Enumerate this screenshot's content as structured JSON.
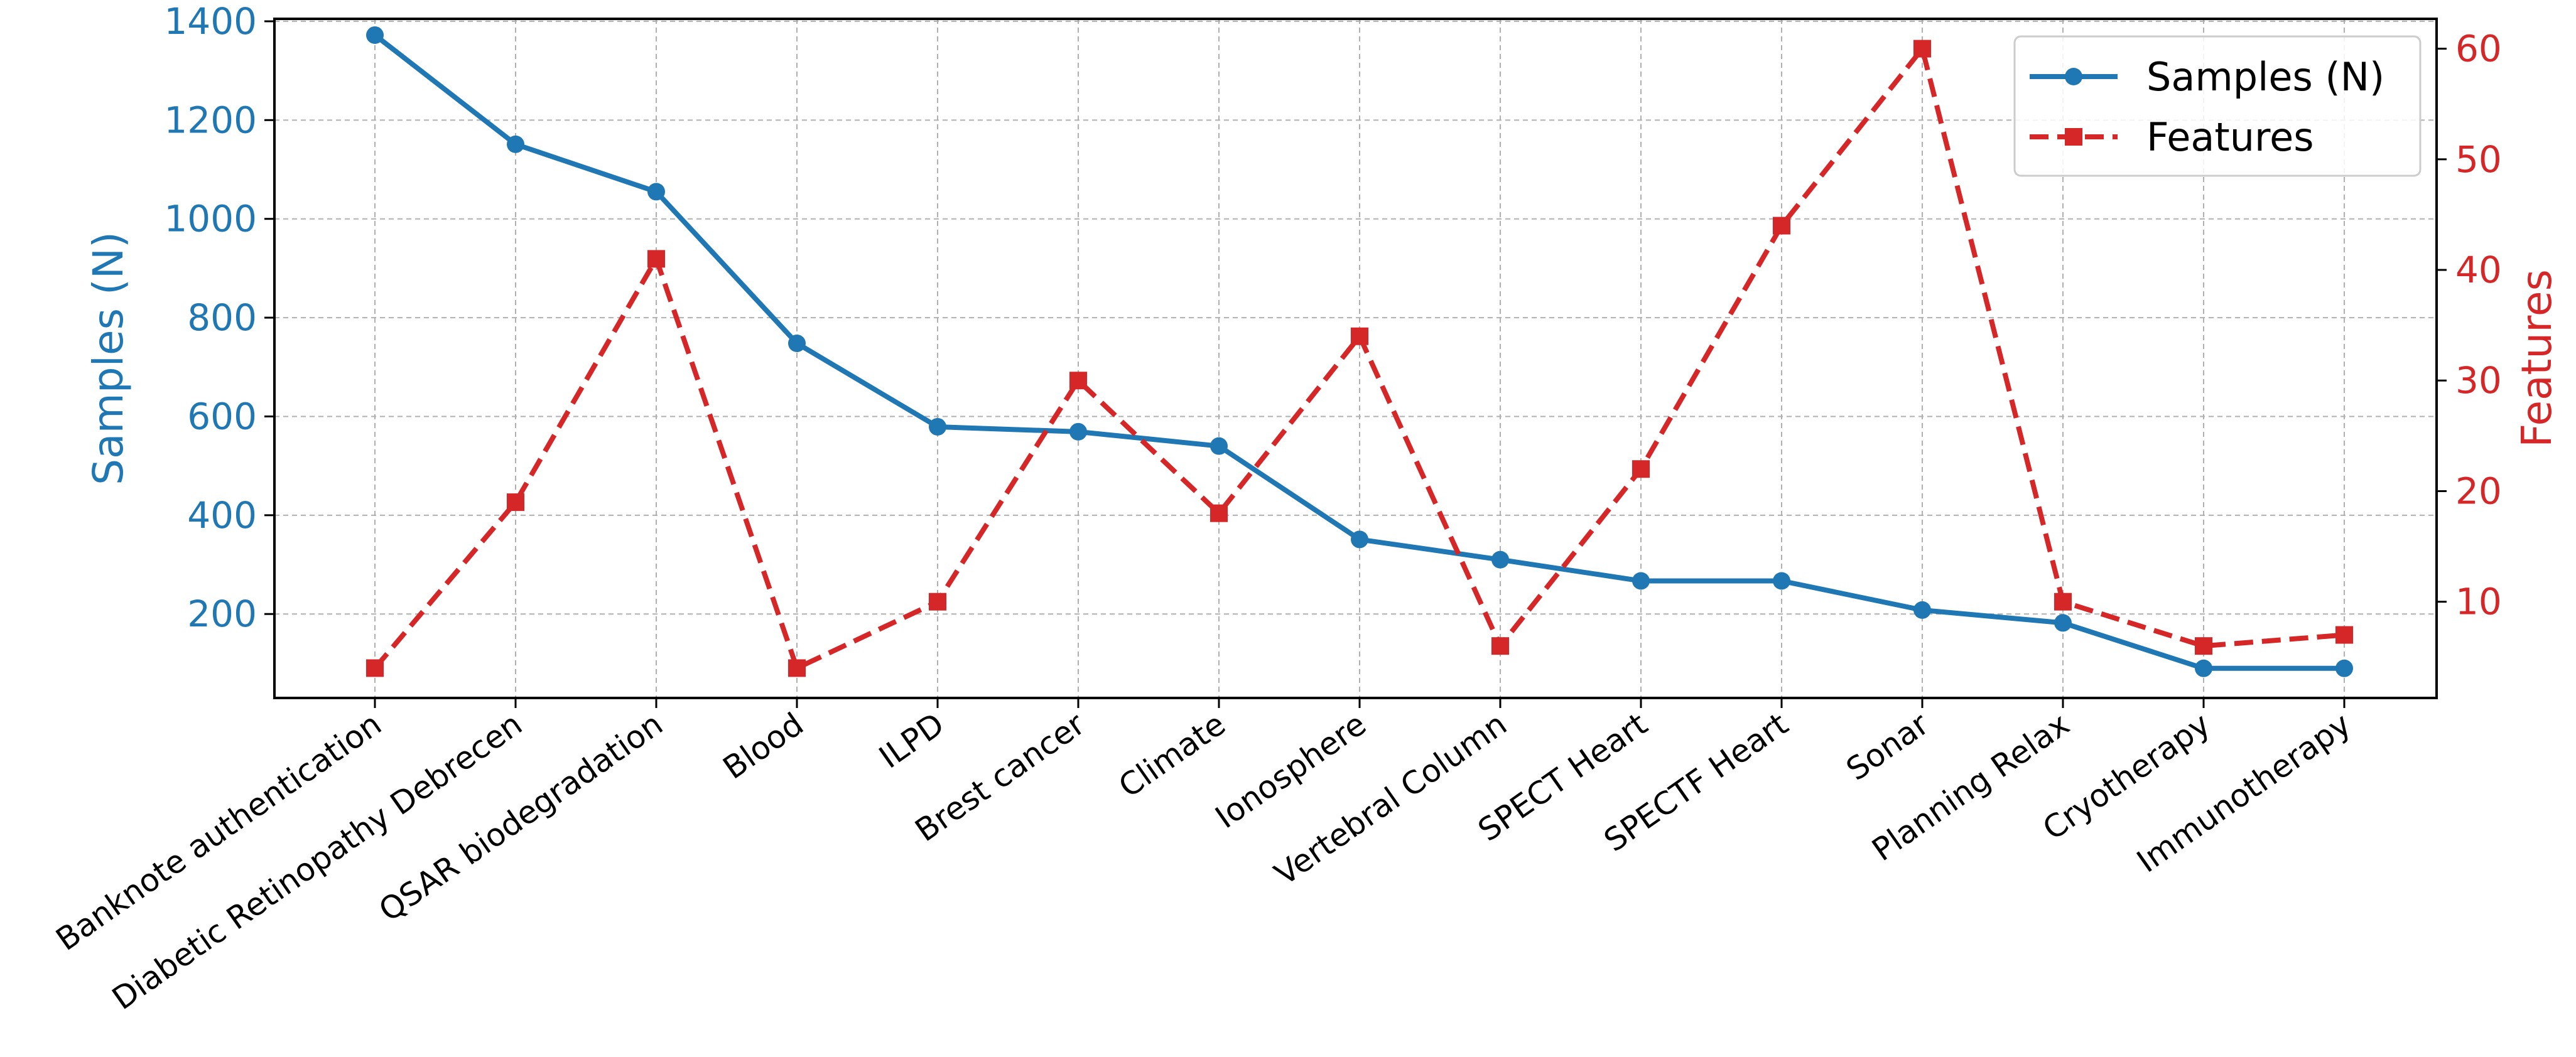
{
  "chart_data": {
    "type": "line",
    "categories": [
      "Banknote authentication",
      "Diabetic Retinopathy Debrecen",
      "QSAR biodegradation",
      "Blood",
      "ILPD",
      "Brest cancer",
      "Climate",
      "Ionosphere",
      "Vertebral Column",
      "SPECT Heart",
      "SPECTF Heart",
      "Sonar",
      "Planning Relax",
      "Cryotherapy",
      "Immunotherapy"
    ],
    "series": [
      {
        "name": "Samples (N)",
        "axis": "left",
        "color": "#1f77b4",
        "style": "solid",
        "marker": "circle",
        "values": [
          1372,
          1151,
          1055,
          748,
          579,
          569,
          540,
          351,
          310,
          267,
          267,
          208,
          182,
          90,
          90
        ]
      },
      {
        "name": "Features",
        "axis": "right",
        "color": "#d62728",
        "style": "dashed",
        "marker": "square",
        "values": [
          4,
          19,
          41,
          4,
          10,
          30,
          18,
          34,
          6,
          22,
          44,
          60,
          10,
          6,
          7
        ]
      }
    ],
    "ylabel": "Samples (N)",
    "y2label": "Features",
    "ylim": [
      30,
      1405
    ],
    "y2lim": [
      1.3,
      62.7
    ],
    "yticks": [
      200,
      400,
      600,
      800,
      1000,
      1200,
      1400
    ],
    "y2ticks": [
      10,
      20,
      30,
      40,
      50,
      60
    ],
    "grid": true,
    "legend": "top-right"
  }
}
